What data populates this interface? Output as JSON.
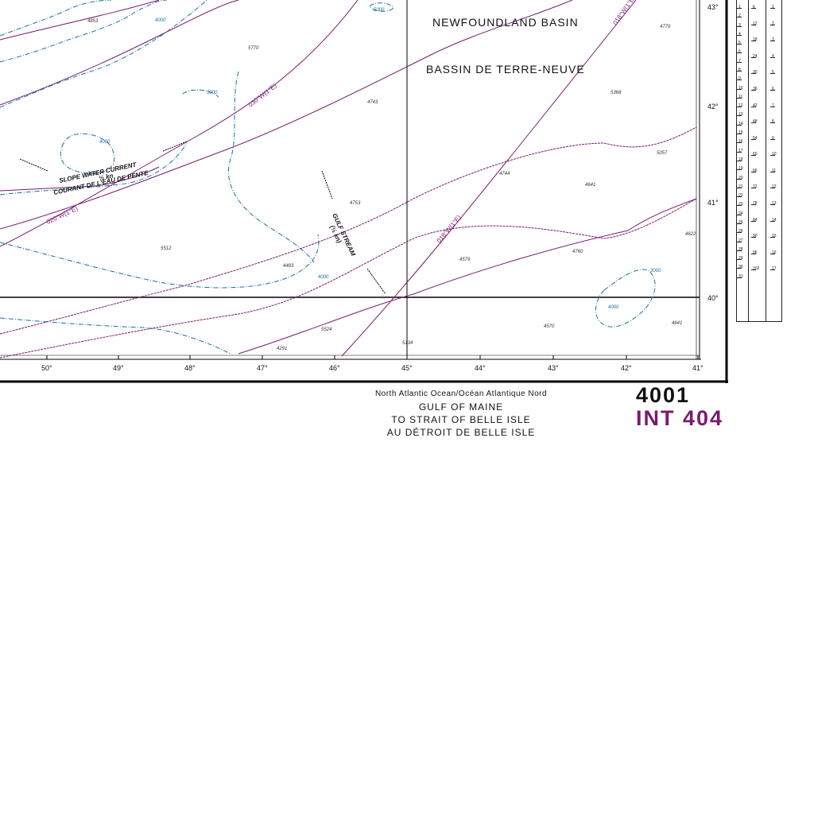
{
  "regions": [
    {
      "id": "newfoundland-basin",
      "label": "NEWFOUNDLAND BASIN"
    },
    {
      "id": "bassin-terre-neuve",
      "label": "BASSIN DE TERRE-NEUVE"
    }
  ],
  "currents": [
    {
      "id": "slope-water-current",
      "label": "SLOPE WATER CURRENT"
    },
    {
      "id": "courant-eau-pente",
      "label": "COURANT DE L'EAU DE PENTE"
    },
    {
      "id": "slope-speed",
      "label": "½ kn"
    },
    {
      "id": "gulf-stream",
      "label": "GULF STREAM"
    },
    {
      "id": "gulf-stream-speed",
      "label": "(½ kn)"
    }
  ],
  "bearings": [
    {
      "id": "bearing-030-top",
      "label": "030°W(1°E)"
    },
    {
      "id": "bearing-020-left",
      "label": "020°W(1°E)"
    },
    {
      "id": "bearing-018",
      "label": "018°W(1°E)"
    },
    {
      "id": "bearing-018-top",
      "label": "018°W(1°E)"
    }
  ],
  "soundings": [
    "4853",
    "5770",
    "4743",
    "4779",
    "5368",
    "4744",
    "4641",
    "3688",
    "4753",
    "5512",
    "4579",
    "4483",
    "4570",
    "5524",
    "4760",
    "4291",
    "4641",
    "5134",
    "5057",
    "4622"
  ],
  "contour_labels": [
    "4000",
    "5000",
    "4000",
    "5000",
    "4000",
    "4000",
    "3000"
  ],
  "longitudes": [
    "50°",
    "49°",
    "48°",
    "47°",
    "46°",
    "45°",
    "44°",
    "43°",
    "42°",
    "41°"
  ],
  "latitudes": [
    "43°",
    "42°",
    "41°",
    "40°"
  ],
  "title": {
    "line1": "North Atlantic Ocean/Océan Atlantique Nord",
    "line2": "GULF OF MAINE",
    "line3": "TO STRAIT OF BELLE ISLE",
    "line4": "AU DÉTROIT DE BELLE ISLE"
  },
  "chart_number": "4001",
  "int_number": "INT 404",
  "scale": {
    "left": [
      "1",
      "2",
      "3",
      "4",
      "5",
      "6",
      "7",
      "8",
      "9",
      "10",
      "11",
      "12",
      "13",
      "14",
      "15",
      "16",
      "17",
      "18",
      "19",
      "20",
      "21",
      "22",
      "23",
      "24",
      "25",
      "26",
      "27",
      "28",
      "29",
      "30",
      "31"
    ],
    "middle": [
      "6",
      "12",
      "18",
      "24",
      "30",
      "36",
      "42",
      "48",
      "54",
      "60",
      "66",
      "72",
      "78",
      "84",
      "90",
      "96",
      "102"
    ],
    "right": [
      "1",
      "2",
      "3",
      "4",
      "5",
      "6",
      "7",
      "8",
      "9",
      "10",
      "11",
      "12",
      "13",
      "14",
      "15",
      "16",
      "17"
    ]
  },
  "colors": {
    "bathy": "#1a6fa0",
    "magenta": "#7a1a70",
    "frame": "#000000"
  }
}
